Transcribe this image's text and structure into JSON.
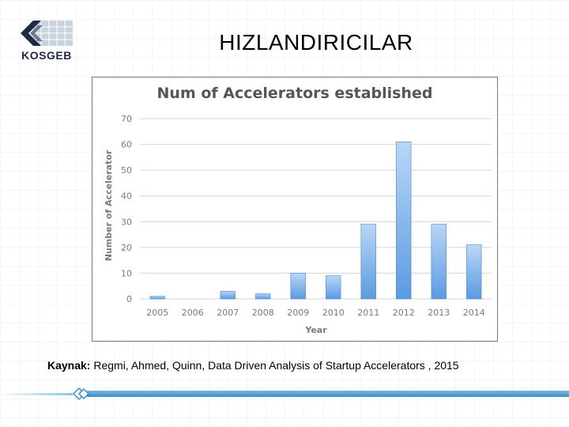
{
  "slide": {
    "title": "HIZLANDIRICILAR",
    "logo_text": "KOSGEB",
    "source_label": "Kaynak:",
    "source_text": " Regmi, Ahmed, Quinn, Data Driven Analysis of Startup Accelerators , 2015"
  },
  "colors": {
    "bar_light": "#b9d7f7",
    "bar_dark": "#5a9be0",
    "bar_edge": "#4a86c8",
    "accent_blue": "#3f8ec2"
  },
  "chart_data": {
    "type": "bar",
    "title": "Num of Accelerators established",
    "xlabel": "Year",
    "ylabel": "Number of Accelerator",
    "categories": [
      "2005",
      "2006",
      "2007",
      "2008",
      "2009",
      "2010",
      "2011",
      "2012",
      "2013",
      "2014"
    ],
    "values": [
      1,
      0,
      3,
      2,
      10,
      9,
      29,
      61,
      29,
      21
    ],
    "ylim": [
      0,
      70
    ],
    "yticks": [
      "0",
      "10",
      "20",
      "30",
      "40",
      "50",
      "60",
      "70"
    ],
    "grid": true,
    "legend": "none"
  }
}
